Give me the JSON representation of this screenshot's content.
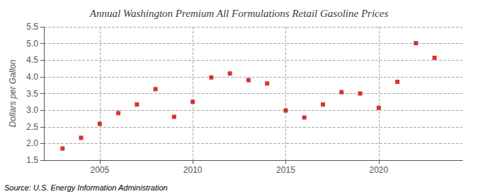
{
  "chart_data": {
    "type": "scatter",
    "title": "Annual Washington Premium All Formulations Retail Gasoline Prices",
    "ylabel": "Dollars per Gallon",
    "source": "Source: U.S. Energy Information Administration",
    "x": [
      2003,
      2004,
      2005,
      2006,
      2007,
      2008,
      2009,
      2010,
      2011,
      2012,
      2013,
      2014,
      2015,
      2016,
      2017,
      2018,
      2019,
      2020,
      2021,
      2022,
      2023
    ],
    "values": [
      1.85,
      2.17,
      2.59,
      2.91,
      3.17,
      3.63,
      2.8,
      3.25,
      3.98,
      4.1,
      3.9,
      3.8,
      2.99,
      2.78,
      3.17,
      3.54,
      3.5,
      3.07,
      3.85,
      5.01,
      4.57
    ],
    "color": "#cc0000",
    "marker": "square",
    "xlim": [
      2002.0,
      2024.5
    ],
    "xticks": [
      2005,
      2010,
      2015,
      2020
    ],
    "ylim": [
      1.5,
      5.5
    ],
    "yticks": [
      1.5,
      {
        "value": 2,
        "label": "2.0"
      },
      2.5,
      {
        "value": 3,
        "label": "3.0"
      },
      3.5,
      {
        "value": 4,
        "label": "4.0"
      },
      4.5,
      {
        "value": 5,
        "label": "5.0"
      },
      5.5
    ],
    "grid": true
  }
}
